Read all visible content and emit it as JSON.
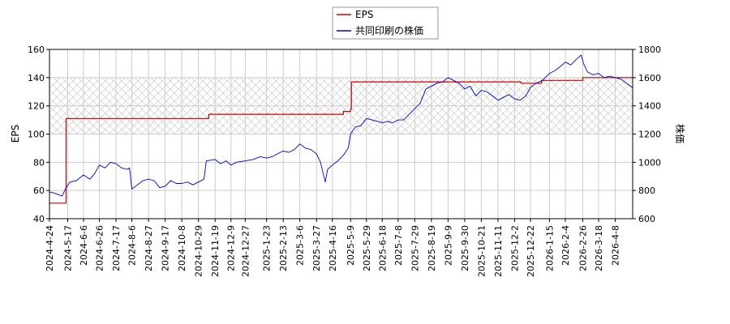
{
  "chart_data": {
    "type": "line",
    "title": "",
    "ylabel_left": "EPS",
    "ylabel_right": "株価",
    "ylim_left": [
      40,
      160
    ],
    "yticks_left": [
      "40",
      "60",
      "80",
      "100",
      "120",
      "140",
      "160"
    ],
    "ylim_right": [
      600,
      1800
    ],
    "yticks_right": [
      "600",
      "800",
      "1000",
      "1200",
      "1400",
      "1600",
      "1800"
    ],
    "x_range": [
      "2024-04-24",
      "2026-04-30"
    ],
    "x_ticks": [
      "2024-4-24",
      "2024-5-17",
      "2024-6-6",
      "2024-6-26",
      "2024-7-17",
      "2024-8-6",
      "2024-8-27",
      "2024-9-17",
      "2024-10-8",
      "2024-10-29",
      "2024-11-19",
      "2024-12-9",
      "2024-12-27",
      "2025-1-23",
      "2025-2-13",
      "2025-3-6",
      "2025-3-27",
      "2025-4-16",
      "2025-5-9",
      "2025-5-29",
      "2025-6-18",
      "2025-7-8",
      "2025-7-29",
      "2025-8-19",
      "2025-9-9",
      "2025-9-30",
      "2025-10-21",
      "2025-11-11",
      "2025-12-2",
      "2025-12-22",
      "2026-1-15",
      "2026-2-4",
      "2026-2-26",
      "2026-3-18",
      "2026-4-8"
    ],
    "grid": true,
    "hatched_band_left": [
      100,
      140
    ],
    "legend_position": "top-center",
    "series": [
      {
        "name": "EPS",
        "axis": "left",
        "color": "#cc0000",
        "step": true,
        "points": [
          [
            "2024-04-24",
            51
          ],
          [
            "2024-05-14",
            51
          ],
          [
            "2024-05-15",
            111
          ],
          [
            "2024-11-10",
            111
          ],
          [
            "2024-11-11",
            114
          ],
          [
            "2025-04-30",
            116
          ],
          [
            "2025-05-09",
            118
          ],
          [
            "2025-05-10",
            137
          ],
          [
            "2025-12-10",
            136
          ],
          [
            "2026-01-05",
            138
          ],
          [
            "2026-02-26",
            140
          ],
          [
            "2026-04-30",
            140
          ]
        ]
      },
      {
        "name": "共同印刷の株価",
        "axis": "right",
        "color": "#0000cc",
        "points": [
          [
            "2024-04-24",
            790
          ],
          [
            "2024-05-01",
            780
          ],
          [
            "2024-05-10",
            760
          ],
          [
            "2024-05-15",
            820
          ],
          [
            "2024-05-20",
            860
          ],
          [
            "2024-05-28",
            870
          ],
          [
            "2024-06-06",
            910
          ],
          [
            "2024-06-14",
            880
          ],
          [
            "2024-06-20",
            920
          ],
          [
            "2024-06-26",
            980
          ],
          [
            "2024-07-03",
            960
          ],
          [
            "2024-07-10",
            1000
          ],
          [
            "2024-07-17",
            990
          ],
          [
            "2024-07-24",
            960
          ],
          [
            "2024-07-31",
            950
          ],
          [
            "2024-08-03",
            960
          ],
          [
            "2024-08-06",
            810
          ],
          [
            "2024-08-13",
            840
          ],
          [
            "2024-08-20",
            870
          ],
          [
            "2024-08-27",
            880
          ],
          [
            "2024-09-03",
            870
          ],
          [
            "2024-09-10",
            820
          ],
          [
            "2024-09-17",
            830
          ],
          [
            "2024-09-24",
            870
          ],
          [
            "2024-10-01",
            850
          ],
          [
            "2024-10-08",
            850
          ],
          [
            "2024-10-15",
            860
          ],
          [
            "2024-10-22",
            840
          ],
          [
            "2024-10-29",
            860
          ],
          [
            "2024-11-05",
            880
          ],
          [
            "2024-11-08",
            1010
          ],
          [
            "2024-11-19",
            1020
          ],
          [
            "2024-11-26",
            990
          ],
          [
            "2024-12-03",
            1010
          ],
          [
            "2024-12-09",
            980
          ],
          [
            "2024-12-16",
            1000
          ],
          [
            "2024-12-27",
            1010
          ],
          [
            "2025-01-06",
            1020
          ],
          [
            "2025-01-15",
            1040
          ],
          [
            "2025-01-23",
            1030
          ],
          [
            "2025-01-30",
            1040
          ],
          [
            "2025-02-06",
            1060
          ],
          [
            "2025-02-13",
            1080
          ],
          [
            "2025-02-20",
            1070
          ],
          [
            "2025-02-27",
            1090
          ],
          [
            "2025-03-06",
            1130
          ],
          [
            "2025-03-13",
            1100
          ],
          [
            "2025-03-20",
            1090
          ],
          [
            "2025-03-27",
            1060
          ],
          [
            "2025-04-01",
            1000
          ],
          [
            "2025-04-07",
            860
          ],
          [
            "2025-04-10",
            950
          ],
          [
            "2025-04-16",
            980
          ],
          [
            "2025-04-23",
            1010
          ],
          [
            "2025-04-30",
            1050
          ],
          [
            "2025-05-06",
            1100
          ],
          [
            "2025-05-09",
            1200
          ],
          [
            "2025-05-15",
            1250
          ],
          [
            "2025-05-22",
            1260
          ],
          [
            "2025-05-29",
            1310
          ],
          [
            "2025-06-05",
            1300
          ],
          [
            "2025-06-12",
            1290
          ],
          [
            "2025-06-18",
            1280
          ],
          [
            "2025-06-25",
            1290
          ],
          [
            "2025-07-01",
            1280
          ],
          [
            "2025-07-08",
            1300
          ],
          [
            "2025-07-15",
            1300
          ],
          [
            "2025-07-22",
            1340
          ],
          [
            "2025-07-29",
            1380
          ],
          [
            "2025-08-05",
            1420
          ],
          [
            "2025-08-12",
            1520
          ],
          [
            "2025-08-19",
            1540
          ],
          [
            "2025-08-26",
            1560
          ],
          [
            "2025-09-02",
            1570
          ],
          [
            "2025-09-09",
            1600
          ],
          [
            "2025-09-16",
            1580
          ],
          [
            "2025-09-23",
            1560
          ],
          [
            "2025-09-30",
            1520
          ],
          [
            "2025-10-07",
            1540
          ],
          [
            "2025-10-14",
            1470
          ],
          [
            "2025-10-21",
            1510
          ],
          [
            "2025-10-28",
            1500
          ],
          [
            "2025-11-04",
            1470
          ],
          [
            "2025-11-11",
            1440
          ],
          [
            "2025-11-18",
            1460
          ],
          [
            "2025-11-25",
            1480
          ],
          [
            "2025-12-02",
            1450
          ],
          [
            "2025-12-09",
            1440
          ],
          [
            "2025-12-16",
            1470
          ],
          [
            "2025-12-22",
            1530
          ],
          [
            "2025-12-29",
            1560
          ],
          [
            "2026-01-06",
            1580
          ],
          [
            "2026-01-15",
            1630
          ],
          [
            "2026-01-22",
            1650
          ],
          [
            "2026-01-29",
            1680
          ],
          [
            "2026-02-04",
            1710
          ],
          [
            "2026-02-11",
            1690
          ],
          [
            "2026-02-18",
            1730
          ],
          [
            "2026-02-24",
            1760
          ],
          [
            "2026-02-27",
            1700
          ],
          [
            "2026-03-04",
            1640
          ],
          [
            "2026-03-11",
            1620
          ],
          [
            "2026-03-18",
            1630
          ],
          [
            "2026-03-25",
            1600
          ],
          [
            "2026-04-01",
            1610
          ],
          [
            "2026-04-08",
            1600
          ],
          [
            "2026-04-15",
            1590
          ],
          [
            "2026-04-22",
            1560
          ],
          [
            "2026-04-30",
            1530
          ]
        ]
      }
    ]
  }
}
